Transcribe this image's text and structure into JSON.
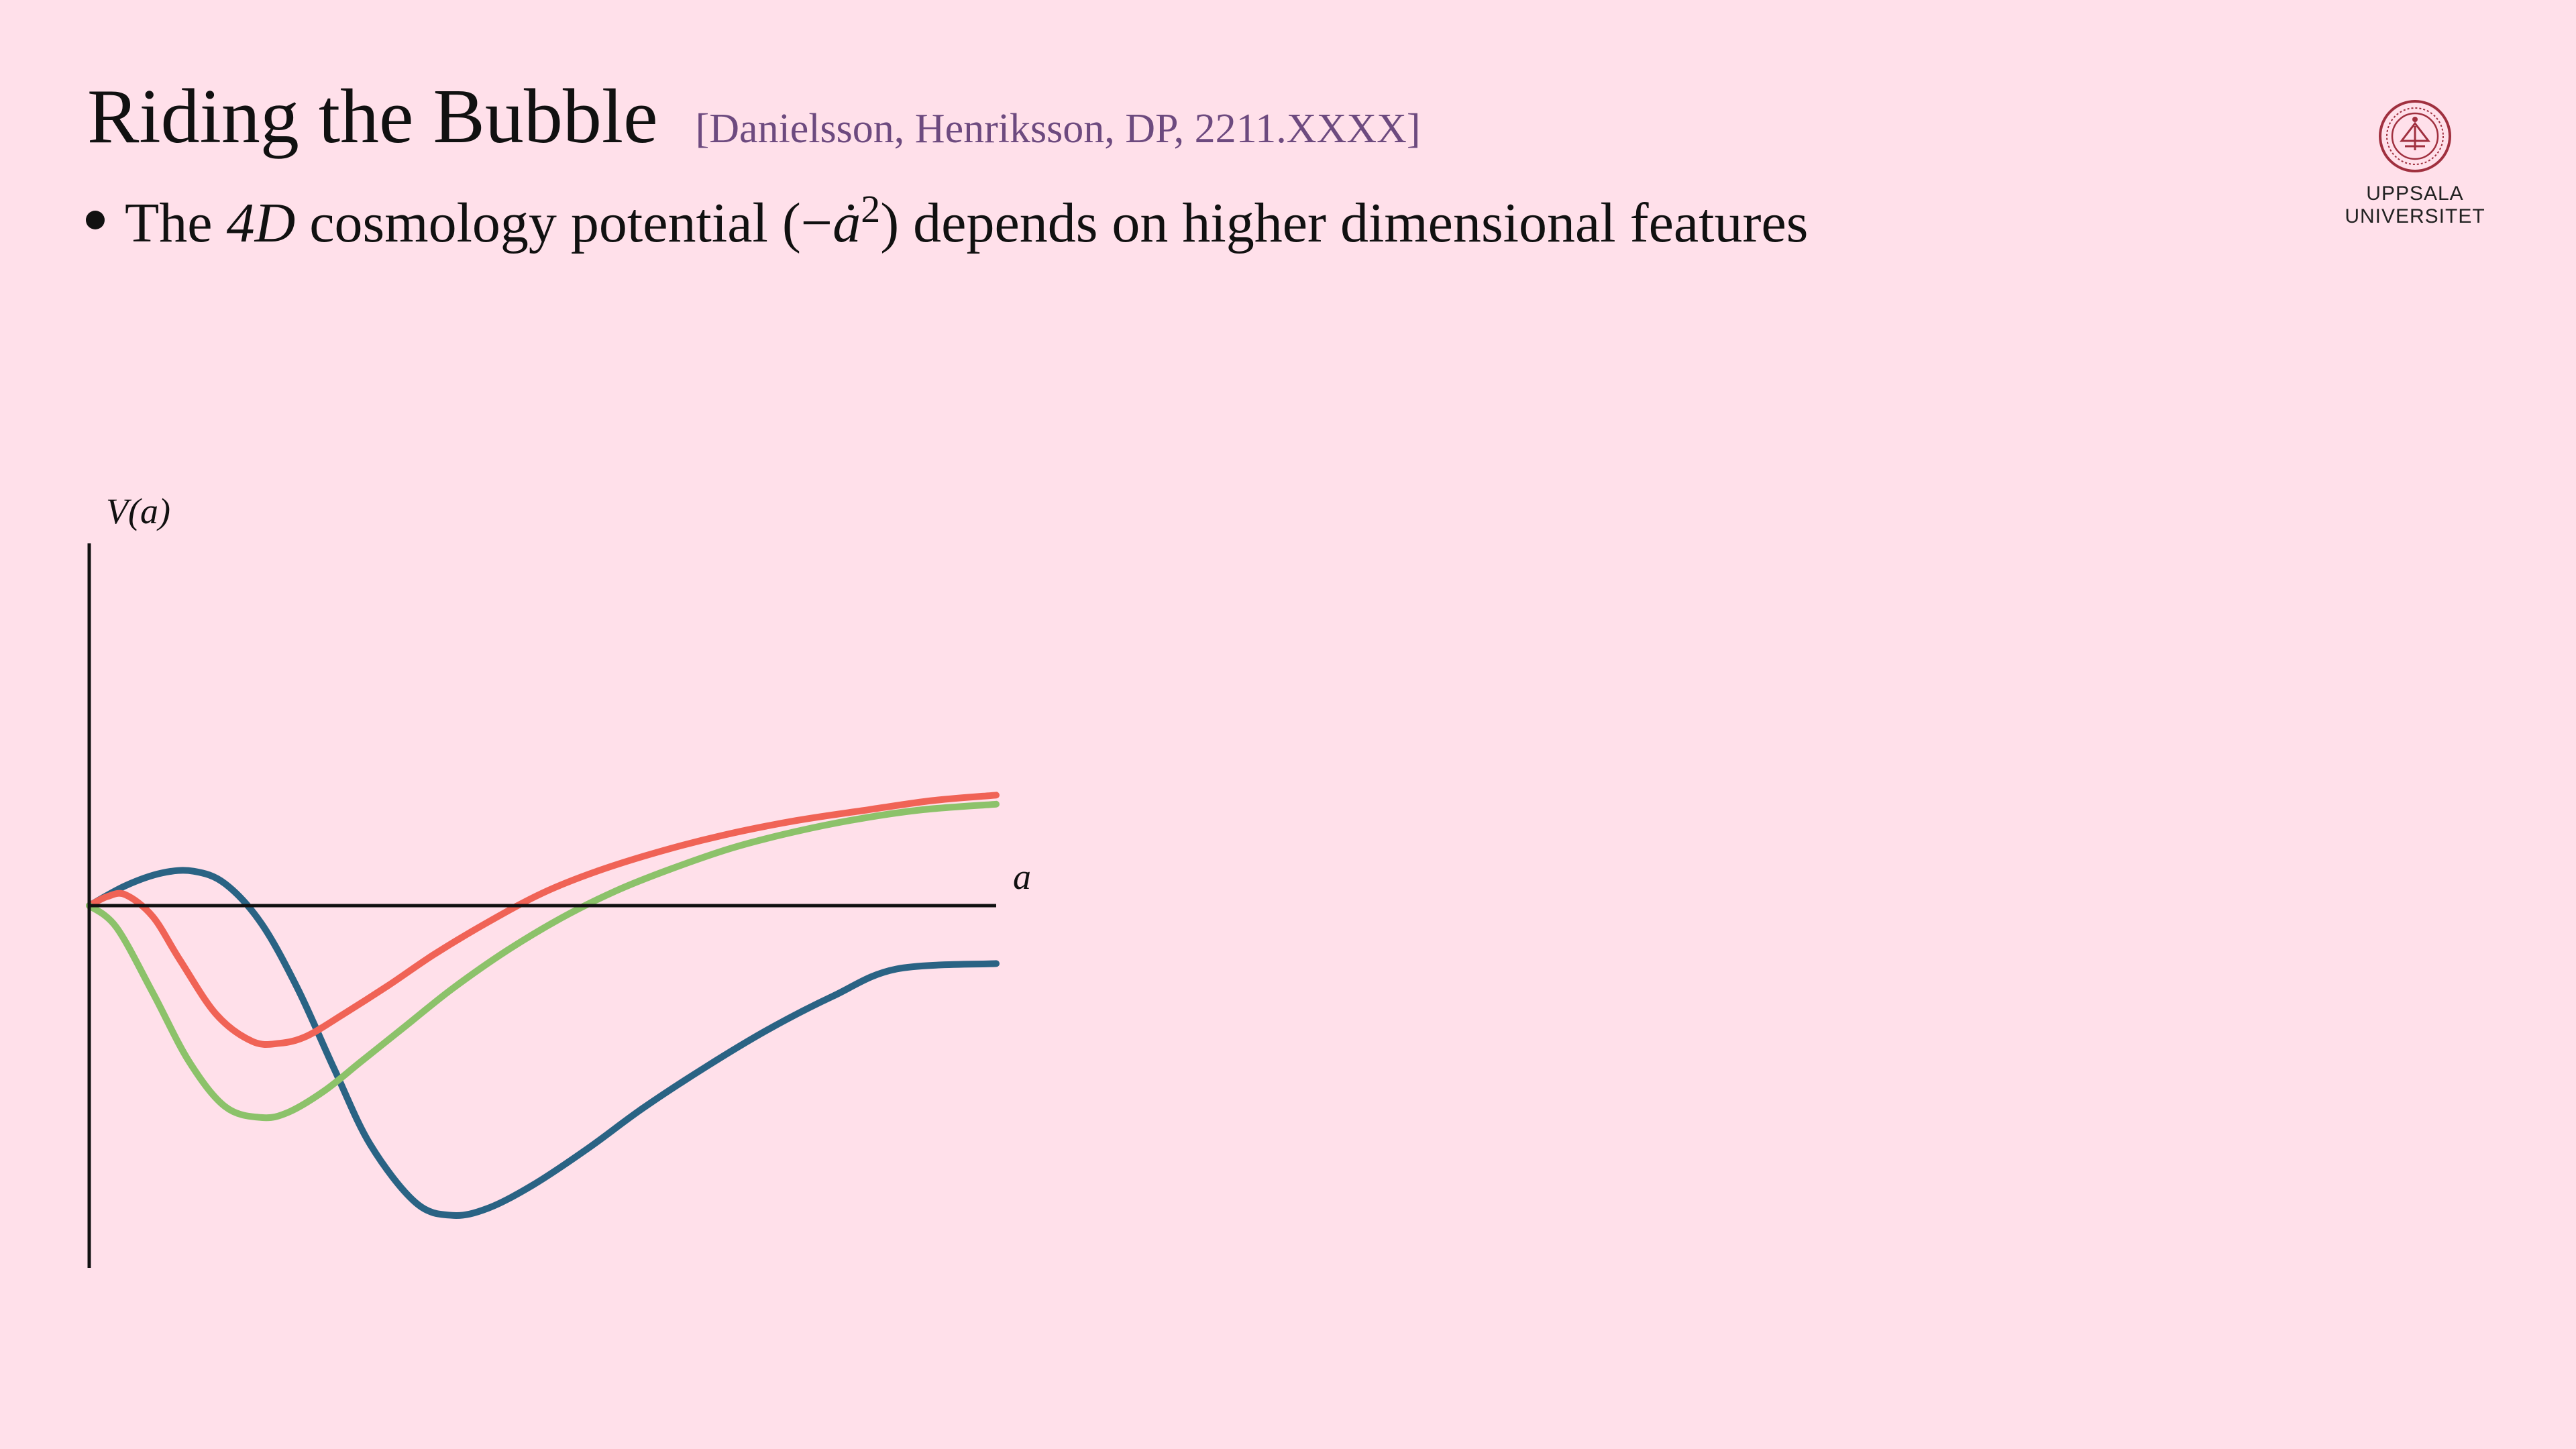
{
  "slide": {
    "title": "Riding the Bubble",
    "citation": "[Danielsson, Henriksson, DP, 2211.XXXX]",
    "bullet": {
      "pre": "The ",
      "math_dim": "4D",
      "mid": " cosmology potential (−",
      "math_adot": "ȧ",
      "exp": "2",
      "post": ") depends on higher dimensional features"
    }
  },
  "logo": {
    "icon": "university-seal-icon",
    "line1": "UPPSALA",
    "line2": "UNIVERSITET",
    "color": "#a0303f"
  },
  "chart_data": {
    "type": "line",
    "xlabel": "a",
    "ylabel": "V(a)",
    "xlim": [
      0,
      10
    ],
    "ylim": [
      -10,
      10
    ],
    "grid": false,
    "axis_color": "#111111",
    "series": [
      {
        "color": "#2a6384",
        "x": [
          0,
          0.4,
          0.8,
          1.15,
          1.5,
          1.9,
          2.3,
          2.7,
          3.1,
          3.6,
          4.0,
          4.4,
          4.9,
          5.5,
          6.1,
          6.8,
          7.5,
          8.2,
          8.9,
          10
        ],
        "y": [
          0,
          0.55,
          0.9,
          0.95,
          0.6,
          -0.5,
          -2.3,
          -4.5,
          -6.6,
          -8.2,
          -8.55,
          -8.35,
          -7.7,
          -6.7,
          -5.6,
          -4.45,
          -3.4,
          -2.5,
          -1.75,
          -1.6
        ]
      },
      {
        "color": "#f06356",
        "x": [
          0,
          0.2,
          0.4,
          0.7,
          1.0,
          1.4,
          1.8,
          2.1,
          2.4,
          2.8,
          3.3,
          3.8,
          4.4,
          5.0,
          5.6,
          6.3,
          7.0,
          7.8,
          8.6,
          9.3,
          10
        ],
        "y": [
          0,
          0.25,
          0.3,
          -0.3,
          -1.5,
          -3.0,
          -3.75,
          -3.8,
          -3.6,
          -3.0,
          -2.2,
          -1.35,
          -0.45,
          0.35,
          0.95,
          1.5,
          1.95,
          2.35,
          2.65,
          2.9,
          3.05
        ]
      },
      {
        "color": "#8cc26a",
        "x": [
          0,
          0.3,
          0.7,
          1.1,
          1.5,
          1.9,
          2.2,
          2.6,
          3.0,
          3.5,
          4.0,
          4.6,
          5.2,
          5.8,
          6.4,
          7.1,
          7.8,
          8.5,
          9.2,
          10
        ],
        "y": [
          0,
          -0.6,
          -2.4,
          -4.3,
          -5.55,
          -5.85,
          -5.7,
          -5.1,
          -4.3,
          -3.3,
          -2.3,
          -1.25,
          -0.35,
          0.4,
          1.0,
          1.6,
          2.05,
          2.4,
          2.65,
          2.8
        ]
      }
    ]
  }
}
